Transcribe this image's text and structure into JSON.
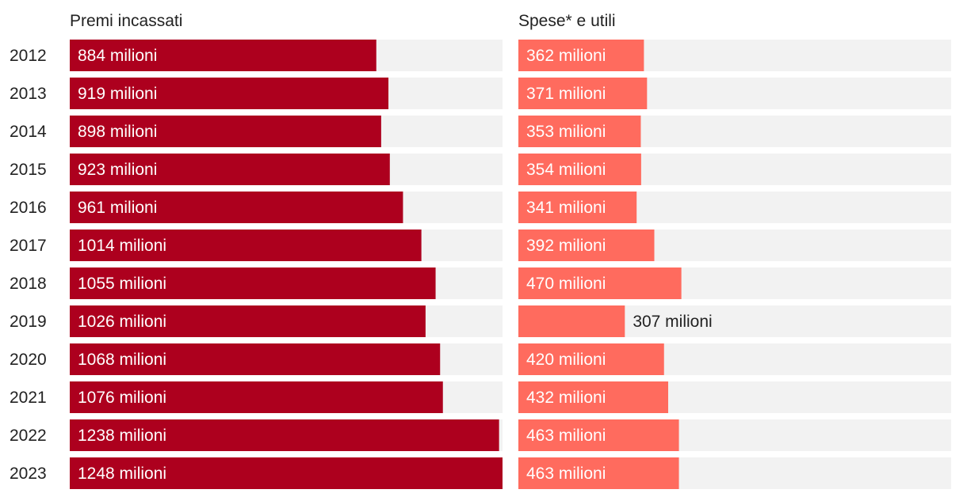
{
  "chart_data": {
    "type": "bar",
    "orientation": "horizontal",
    "categories": [
      "2012",
      "2013",
      "2014",
      "2015",
      "2016",
      "2017",
      "2018",
      "2019",
      "2020",
      "2021",
      "2022",
      "2023"
    ],
    "series": [
      {
        "name": "Premi incassati",
        "values": [
          884,
          919,
          898,
          923,
          961,
          1014,
          1055,
          1026,
          1068,
          1076,
          1238,
          1248
        ],
        "labels": [
          "884 milioni",
          "919 milioni",
          "898 milioni",
          "923 milioni",
          "961 milioni",
          "1014 milioni",
          "1055 milioni",
          "1026 milioni",
          "1068 milioni",
          "1076 milioni",
          "1238 milioni",
          "1248 milioni"
        ],
        "color": "#ad001e",
        "xlim": [
          0,
          1248
        ]
      },
      {
        "name": "Spese* e utili",
        "values": [
          362,
          371,
          353,
          354,
          341,
          392,
          470,
          307,
          420,
          432,
          463,
          463
        ],
        "labels": [
          "362 milioni",
          "371 milioni",
          "353 milioni",
          "354 milioni",
          "341 milioni",
          "392 milioni",
          "470 milioni",
          "307 milioni",
          "420 milioni",
          "432 milioni",
          "463 milioni",
          "463 milioni"
        ],
        "color": "#ff6b5e",
        "xlim": [
          0,
          1248
        ]
      }
    ],
    "track_color": "#f2f2f2",
    "label_color_inside": "#ffffff",
    "label_color_outside": "#222222",
    "title": "",
    "xlabel": "",
    "ylabel": "",
    "grid": false,
    "legend": "none"
  }
}
